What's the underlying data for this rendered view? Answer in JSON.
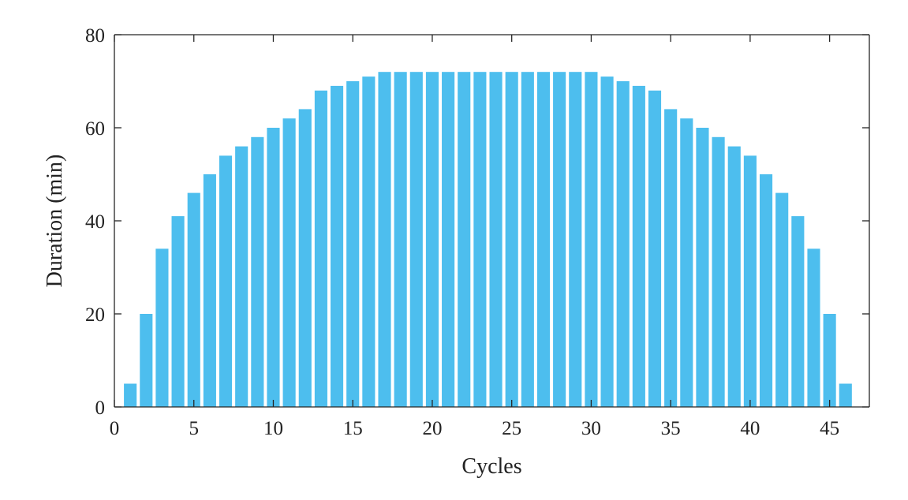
{
  "chart_data": {
    "type": "bar",
    "x": [
      1,
      2,
      3,
      4,
      5,
      6,
      7,
      8,
      9,
      10,
      11,
      12,
      13,
      14,
      15,
      16,
      17,
      18,
      19,
      20,
      21,
      22,
      23,
      24,
      25,
      26,
      27,
      28,
      29,
      30,
      31,
      32,
      33,
      34,
      35,
      36,
      37,
      38,
      39,
      40,
      41,
      42,
      43,
      44,
      45,
      46
    ],
    "values": [
      5,
      20,
      34,
      41,
      46,
      50,
      54,
      56,
      58,
      60,
      62,
      64,
      68,
      69,
      70,
      71,
      72,
      72,
      72,
      72,
      72,
      72,
      72,
      72,
      72,
      72,
      72,
      72,
      72,
      72,
      71,
      70,
      69,
      68,
      64,
      62,
      60,
      58,
      56,
      54,
      50,
      46,
      41,
      34,
      20,
      5
    ],
    "xlabel": "Cycles",
    "ylabel": "Duration (min)",
    "xlim": [
      0,
      47.5
    ],
    "ylim": [
      0,
      80
    ],
    "xticks": [
      0,
      5,
      10,
      15,
      20,
      25,
      30,
      35,
      40,
      45
    ],
    "yticks": [
      0,
      20,
      40,
      60,
      80
    ],
    "bar_color": "#4dbeee",
    "grid": false,
    "box": "open-top-right"
  }
}
